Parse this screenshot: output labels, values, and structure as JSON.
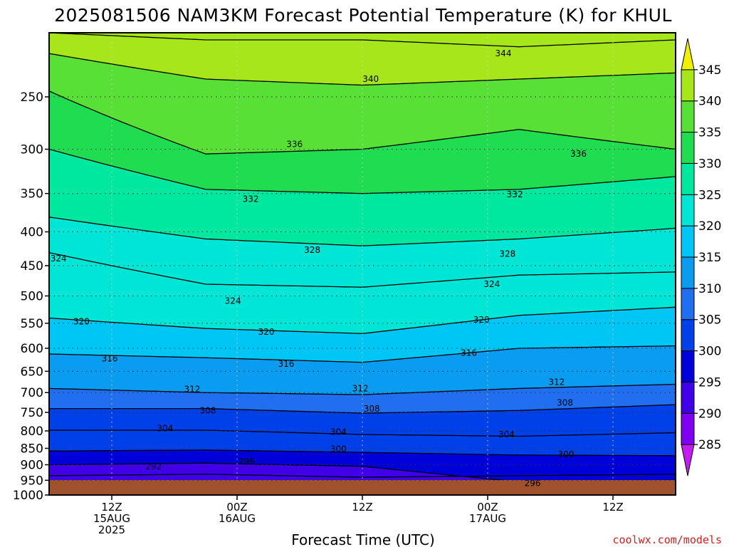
{
  "chart_data": {
    "type": "heatmap",
    "title": "2025081506 NAM3KM Forecast Potential Temperature (K) for KHUL",
    "xlabel": "Forecast Time (UTC)",
    "ylabel": "",
    "credit": "coolwx.com/models",
    "y_scale": "log-pressure",
    "y_ticks": [
      250,
      300,
      350,
      400,
      450,
      500,
      550,
      600,
      650,
      700,
      750,
      800,
      850,
      900,
      950,
      1000
    ],
    "y_range": [
      1000,
      200
    ],
    "x_ticks": [
      {
        "hour": 6,
        "line1": "12Z",
        "line2": "15AUG",
        "line3": "2025"
      },
      {
        "hour": 18,
        "line1": "00Z",
        "line2": "16AUG",
        "line3": ""
      },
      {
        "hour": 30,
        "line1": "12Z",
        "line2": "",
        "line3": ""
      },
      {
        "hour": 42,
        "line1": "00Z",
        "line2": "17AUG",
        "line3": ""
      },
      {
        "hour": 54,
        "line1": "12Z",
        "line2": "",
        "line3": ""
      }
    ],
    "x_range_hours": [
      0,
      60
    ],
    "grid": true,
    "colorbar": {
      "ticks": [
        285,
        290,
        295,
        300,
        305,
        310,
        315,
        320,
        325,
        330,
        335,
        340,
        345
      ],
      "bins": [
        {
          "from": 280,
          "to": 285,
          "color": "#c21cf0"
        },
        {
          "from": 285,
          "to": 290,
          "color": "#8000f0"
        },
        {
          "from": 290,
          "to": 295,
          "color": "#4000e8"
        },
        {
          "from": 295,
          "to": 300,
          "color": "#0000d8"
        },
        {
          "from": 300,
          "to": 305,
          "color": "#0040e8"
        },
        {
          "from": 305,
          "to": 310,
          "color": "#1f6ff0"
        },
        {
          "from": 310,
          "to": 315,
          "color": "#0a9cf0"
        },
        {
          "from": 315,
          "to": 320,
          "color": "#00c6f6"
        },
        {
          "from": 320,
          "to": 325,
          "color": "#00e6d6"
        },
        {
          "from": 325,
          "to": 330,
          "color": "#00e8a0"
        },
        {
          "from": 330,
          "to": 335,
          "color": "#20dc50"
        },
        {
          "from": 335,
          "to": 340,
          "color": "#58e036"
        },
        {
          "from": 340,
          "to": 345,
          "color": "#a8e61c"
        },
        {
          "from": 345,
          "to": 350,
          "color": "#f0f000"
        }
      ]
    },
    "isentropes": [
      {
        "theta": 292,
        "pressure_profile": [
          [
            0,
            935
          ],
          [
            15,
            930
          ],
          [
            30,
            940
          ],
          [
            45,
            935
          ],
          [
            60,
            930
          ]
        ]
      },
      {
        "theta": 296,
        "pressure_profile": [
          [
            0,
            900
          ],
          [
            15,
            895
          ],
          [
            30,
            905
          ],
          [
            45,
            955
          ],
          [
            60,
            950
          ]
        ]
      },
      {
        "theta": 300,
        "pressure_profile": [
          [
            0,
            858
          ],
          [
            15,
            855
          ],
          [
            30,
            862
          ],
          [
            45,
            870
          ],
          [
            60,
            872
          ]
        ]
      },
      {
        "theta": 304,
        "pressure_profile": [
          [
            0,
            798
          ],
          [
            15,
            798
          ],
          [
            30,
            810
          ],
          [
            45,
            815
          ],
          [
            60,
            805
          ]
        ]
      },
      {
        "theta": 308,
        "pressure_profile": [
          [
            0,
            740
          ],
          [
            15,
            740
          ],
          [
            30,
            752
          ],
          [
            45,
            745
          ],
          [
            60,
            730
          ]
        ]
      },
      {
        "theta": 312,
        "pressure_profile": [
          [
            0,
            690
          ],
          [
            15,
            700
          ],
          [
            30,
            705
          ],
          [
            45,
            690
          ],
          [
            60,
            680
          ]
        ]
      },
      {
        "theta": 316,
        "pressure_profile": [
          [
            0,
            612
          ],
          [
            15,
            620
          ],
          [
            30,
            630
          ],
          [
            45,
            600
          ],
          [
            60,
            595
          ]
        ]
      },
      {
        "theta": 320,
        "pressure_profile": [
          [
            0,
            540
          ],
          [
            15,
            560
          ],
          [
            30,
            570
          ],
          [
            45,
            535
          ],
          [
            60,
            520
          ]
        ]
      },
      {
        "theta": 324,
        "pressure_profile": [
          [
            0,
            430
          ],
          [
            15,
            480
          ],
          [
            30,
            485
          ],
          [
            45,
            465
          ],
          [
            60,
            460
          ]
        ]
      },
      {
        "theta": 328,
        "pressure_profile": [
          [
            0,
            380
          ],
          [
            15,
            410
          ],
          [
            30,
            420
          ],
          [
            45,
            410
          ],
          [
            60,
            395
          ]
        ]
      },
      {
        "theta": 332,
        "pressure_profile": [
          [
            0,
            300
          ],
          [
            15,
            345
          ],
          [
            30,
            350
          ],
          [
            45,
            345
          ],
          [
            60,
            330
          ]
        ]
      },
      {
        "theta": 336,
        "pressure_profile": [
          [
            0,
            245
          ],
          [
            15,
            305
          ],
          [
            30,
            300
          ],
          [
            45,
            280
          ],
          [
            60,
            300
          ]
        ]
      },
      {
        "theta": 340,
        "pressure_profile": [
          [
            0,
            215
          ],
          [
            15,
            235
          ],
          [
            30,
            240
          ],
          [
            45,
            235
          ],
          [
            60,
            230
          ]
        ]
      },
      {
        "theta": 344,
        "pressure_profile": [
          [
            0,
            200
          ],
          [
            15,
            205
          ],
          [
            30,
            205
          ],
          [
            45,
            210
          ],
          [
            60,
            205
          ]
        ]
      }
    ],
    "contour_labels": [
      {
        "text": "344",
        "hour": 43.5,
        "pressure": 215
      },
      {
        "text": "340",
        "hour": 30.8,
        "pressure": 235
      },
      {
        "text": "336",
        "hour": 23.5,
        "pressure": 295
      },
      {
        "text": "336",
        "hour": 50.7,
        "pressure": 305
      },
      {
        "text": "332",
        "hour": 19.3,
        "pressure": 357
      },
      {
        "text": "332",
        "hour": 44.6,
        "pressure": 351
      },
      {
        "text": "328",
        "hour": 25.2,
        "pressure": 426
      },
      {
        "text": "328",
        "hour": 43.9,
        "pressure": 432
      },
      {
        "text": "324",
        "hour": 0.9,
        "pressure": 439
      },
      {
        "text": "324",
        "hour": 17.6,
        "pressure": 509
      },
      {
        "text": "324",
        "hour": 42.4,
        "pressure": 480
      },
      {
        "text": "320",
        "hour": 3.1,
        "pressure": 547
      },
      {
        "text": "320",
        "hour": 20.8,
        "pressure": 567
      },
      {
        "text": "320",
        "hour": 41.4,
        "pressure": 543
      },
      {
        "text": "316",
        "hour": 5.8,
        "pressure": 622
      },
      {
        "text": "316",
        "hour": 22.7,
        "pressure": 634
      },
      {
        "text": "316",
        "hour": 40.2,
        "pressure": 610
      },
      {
        "text": "312",
        "hour": 13.7,
        "pressure": 692
      },
      {
        "text": "312",
        "hour": 29.8,
        "pressure": 690
      },
      {
        "text": "312",
        "hour": 48.6,
        "pressure": 675
      },
      {
        "text": "308",
        "hour": 15.2,
        "pressure": 745
      },
      {
        "text": "308",
        "hour": 30.9,
        "pressure": 741
      },
      {
        "text": "308",
        "hour": 49.4,
        "pressure": 725
      },
      {
        "text": "304",
        "hour": 11.1,
        "pressure": 793
      },
      {
        "text": "304",
        "hour": 27.7,
        "pressure": 803
      },
      {
        "text": "304",
        "hour": 43.8,
        "pressure": 810
      },
      {
        "text": "300",
        "hour": 27.7,
        "pressure": 852
      },
      {
        "text": "300",
        "hour": 49.5,
        "pressure": 868
      },
      {
        "text": "296",
        "hour": 18.9,
        "pressure": 890
      },
      {
        "text": "296",
        "hour": 46.3,
        "pressure": 960
      },
      {
        "text": "292",
        "hour": 10.0,
        "pressure": 906
      }
    ]
  }
}
